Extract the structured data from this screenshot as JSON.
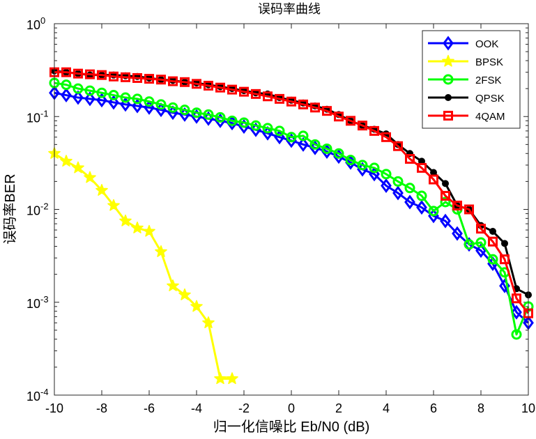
{
  "chart_data": {
    "type": "line",
    "title": "误码率曲线",
    "xlabel": "归一化信噪比 Eb/N0 (dB)",
    "ylabel": "误码率BER",
    "xlim": [
      -10,
      10
    ],
    "ylim": [
      0.0001,
      1
    ],
    "yscale": "log",
    "grid": false,
    "legend_position": "top-right",
    "x_ticks": [
      -10,
      -8,
      -6,
      -4,
      -2,
      0,
      2,
      4,
      6,
      8,
      10
    ],
    "x_tick_labels": [
      "-10",
      "-8",
      "-6",
      "-4",
      "-2",
      "0",
      "2",
      "4",
      "6",
      "8",
      "10"
    ],
    "y_ticks": [
      1,
      0.1,
      0.01,
      0.001,
      0.0001
    ],
    "y_tick_labels": [
      {
        "base": "10",
        "exp": "0"
      },
      {
        "base": "10",
        "exp": "-1"
      },
      {
        "base": "10",
        "exp": "-2"
      },
      {
        "base": "10",
        "exp": "-3"
      },
      {
        "base": "10",
        "exp": "-4"
      }
    ],
    "series": [
      {
        "name": "OOK",
        "color": "#0000ff",
        "marker": "diamond",
        "x": [
          -10,
          -9.5,
          -9,
          -8.5,
          -8,
          -7.5,
          -7,
          -6.5,
          -6,
          -5.5,
          -5,
          -4.5,
          -4,
          -3.5,
          -3,
          -2.5,
          -2,
          -1.5,
          -1,
          -0.5,
          0,
          0.5,
          1,
          1.5,
          2,
          2.5,
          3,
          3.5,
          4,
          4.5,
          5,
          5.5,
          6,
          6.5,
          7,
          7.5,
          8,
          8.5,
          9,
          9.5,
          10
        ],
        "y": [
          0.18,
          0.17,
          0.16,
          0.155,
          0.15,
          0.142,
          0.135,
          0.13,
          0.125,
          0.118,
          0.11,
          0.105,
          0.1,
          0.095,
          0.09,
          0.085,
          0.078,
          0.072,
          0.066,
          0.06,
          0.055,
          0.05,
          0.046,
          0.042,
          0.037,
          0.032,
          0.027,
          0.024,
          0.018,
          0.015,
          0.012,
          0.0105,
          0.0085,
          0.0075,
          0.0055,
          0.0042,
          0.0036,
          0.0026,
          0.0015,
          0.00078,
          0.0006
        ]
      },
      {
        "name": "BPSK",
        "color": "#ffff00",
        "marker": "star",
        "x": [
          -10,
          -9.5,
          -9,
          -8.5,
          -8,
          -7.5,
          -7,
          -6.5,
          -6,
          -5.5,
          -5,
          -4.5,
          -4,
          -3.5,
          -3,
          -2.5
        ],
        "y": [
          0.04,
          0.033,
          0.028,
          0.022,
          0.016,
          0.011,
          0.0075,
          0.0063,
          0.0058,
          0.0035,
          0.0015,
          0.0012,
          0.0009,
          0.0006,
          0.00015,
          0.00015
        ]
      },
      {
        "name": "2FSK",
        "color": "#00ff00",
        "marker": "circle",
        "x": [
          -10,
          -9.5,
          -9,
          -8.5,
          -8,
          -7.5,
          -7,
          -6.5,
          -6,
          -5.5,
          -5,
          -4.5,
          -4,
          -3.5,
          -3,
          -2.5,
          -2,
          -1.5,
          -1,
          -0.5,
          0,
          0.5,
          1,
          1.5,
          2,
          2.5,
          3,
          3.5,
          4,
          4.5,
          5,
          5.5,
          6,
          6.5,
          7,
          7.5,
          8,
          8.5,
          9,
          9.5,
          10
        ],
        "y": [
          0.23,
          0.22,
          0.2,
          0.19,
          0.18,
          0.17,
          0.16,
          0.155,
          0.145,
          0.135,
          0.125,
          0.118,
          0.11,
          0.105,
          0.098,
          0.09,
          0.086,
          0.08,
          0.075,
          0.07,
          0.06,
          0.062,
          0.05,
          0.045,
          0.04,
          0.034,
          0.03,
          0.028,
          0.024,
          0.02,
          0.017,
          0.014,
          0.0096,
          0.012,
          0.01,
          0.0042,
          0.0044,
          0.0029,
          0.0021,
          0.00045,
          0.0009
        ]
      },
      {
        "name": "QPSK",
        "color": "#000000",
        "marker": "dot",
        "x": [
          -10,
          -9.5,
          -9,
          -8.5,
          -8,
          -7.5,
          -7,
          -6.5,
          -6,
          -5.5,
          -5,
          -4.5,
          -4,
          -3.5,
          -3,
          -2.5,
          -2,
          -1.5,
          -1,
          -0.5,
          0,
          0.5,
          1,
          1.5,
          2,
          2.5,
          3,
          3.5,
          4,
          4.5,
          5,
          5.5,
          6,
          6.5,
          7,
          7.5,
          8,
          8.5,
          9,
          9.5,
          10
        ],
        "y": [
          0.31,
          0.3,
          0.29,
          0.28,
          0.28,
          0.28,
          0.275,
          0.27,
          0.26,
          0.25,
          0.245,
          0.235,
          0.23,
          0.22,
          0.21,
          0.2,
          0.19,
          0.18,
          0.175,
          0.16,
          0.15,
          0.14,
          0.13,
          0.12,
          0.105,
          0.09,
          0.08,
          0.073,
          0.065,
          0.05,
          0.04,
          0.033,
          0.025,
          0.019,
          0.011,
          0.01,
          0.0067,
          0.0058,
          0.0043,
          0.0014,
          0.0012
        ]
      },
      {
        "name": "4QAM",
        "color": "#ff0000",
        "marker": "square",
        "x": [
          -10,
          -9.5,
          -9,
          -8.5,
          -8,
          -7.5,
          -7,
          -6.5,
          -6,
          -5.5,
          -5,
          -4.5,
          -4,
          -3.5,
          -3,
          -2.5,
          -2,
          -1.5,
          -1,
          -0.5,
          0,
          0.5,
          1,
          1.5,
          2,
          2.5,
          3,
          3.5,
          4,
          4.5,
          5,
          5.5,
          6,
          6.5,
          7,
          7.5,
          8,
          8.5,
          9,
          9.5,
          10
        ],
        "y": [
          0.3,
          0.3,
          0.29,
          0.285,
          0.28,
          0.27,
          0.265,
          0.26,
          0.255,
          0.25,
          0.24,
          0.235,
          0.225,
          0.215,
          0.205,
          0.195,
          0.185,
          0.175,
          0.165,
          0.155,
          0.145,
          0.135,
          0.125,
          0.115,
          0.1,
          0.09,
          0.08,
          0.07,
          0.06,
          0.048,
          0.035,
          0.028,
          0.021,
          0.014,
          0.011,
          0.01,
          0.0062,
          0.0045,
          0.0029,
          0.0011,
          0.00076
        ]
      }
    ]
  }
}
